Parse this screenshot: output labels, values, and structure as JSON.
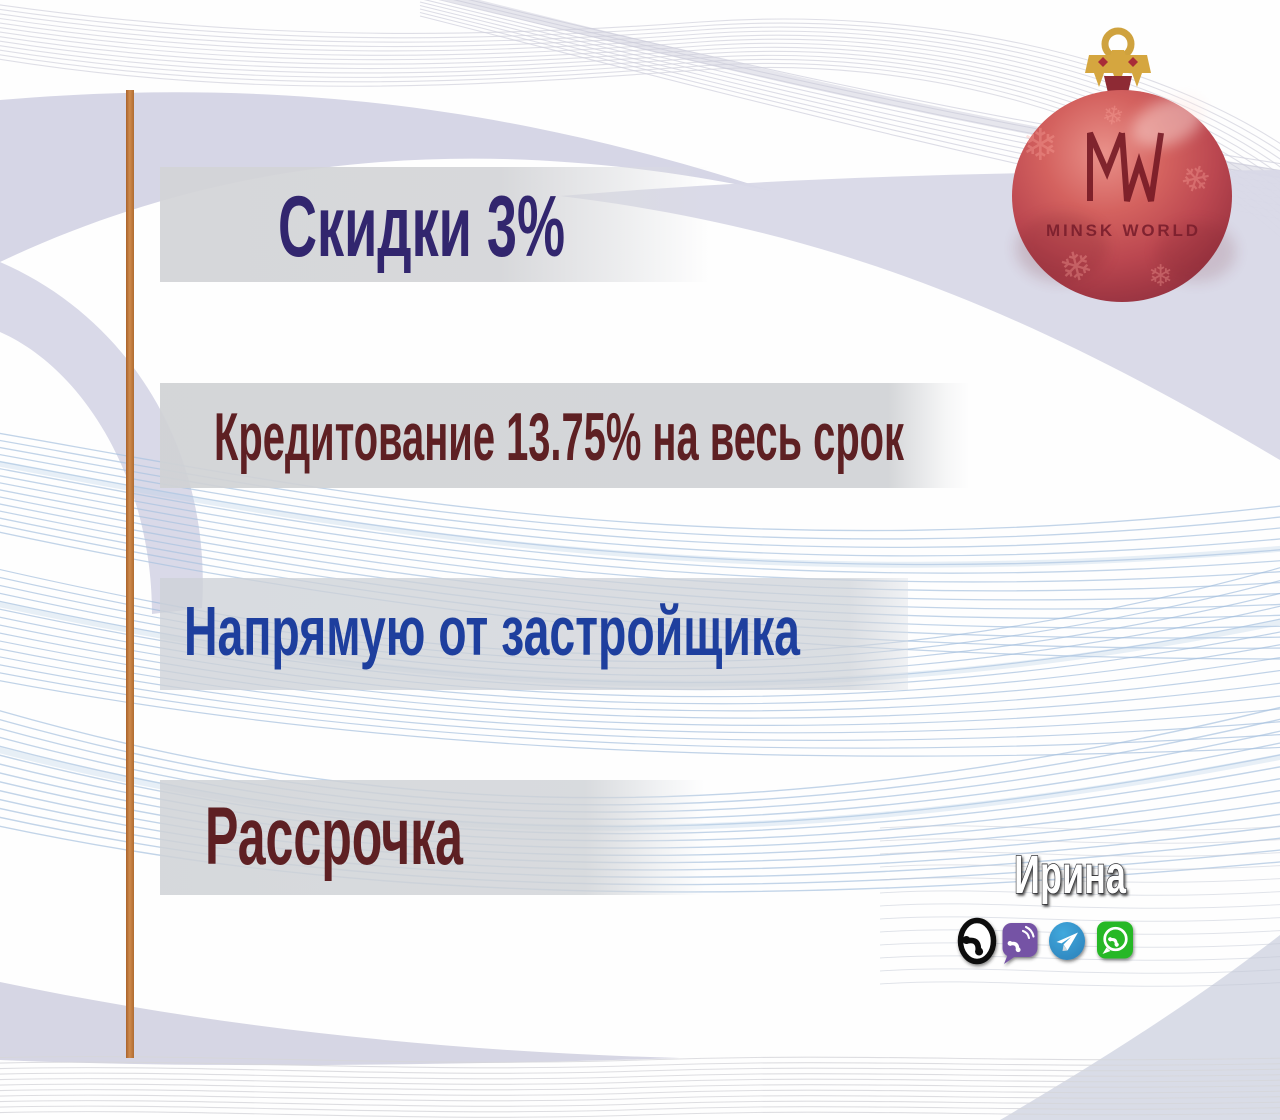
{
  "banner": {
    "offers": [
      {
        "text": "Скидки 3%",
        "color": "#32266e"
      },
      {
        "text": "Кредитование 13.75% на весь срок",
        "color": "#5e2023"
      },
      {
        "text": "Напрямую от застройщика",
        "color": "#1e3f9e"
      },
      {
        "text": "Рассрочка",
        "color": "#5e2023"
      }
    ]
  },
  "brand": {
    "monogram": "MW",
    "wordmark": "MINSK WORLD",
    "ornament": "red-christmas-ball"
  },
  "contact": {
    "name": "Ирина",
    "channels": [
      "phone",
      "viber",
      "telegram",
      "whatsapp"
    ]
  },
  "colors": {
    "accent_line": "#c57b3e",
    "bar_background": "#d2d3d6",
    "lavender_swoosh": "#d6d6e6",
    "wave_blue": "#a9c3e0",
    "ball_red": "#c2484e",
    "gold": "#d5a63f",
    "wordmark_red": "#7b1f2d",
    "viber_purple": "#7552a5",
    "telegram_blue": "#37a0d8",
    "whatsapp_green": "#28b826",
    "phone_black": "#0d0d0d",
    "contact_name_fill": "#ffffff"
  }
}
